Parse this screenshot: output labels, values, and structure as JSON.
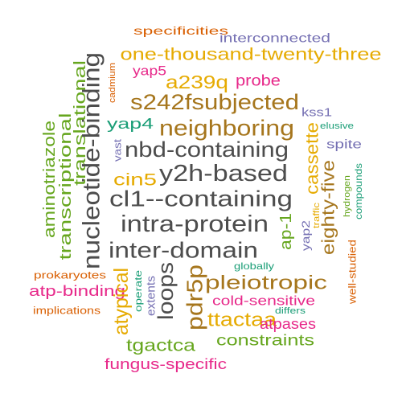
{
  "palette": {
    "gray": "#4d4d4d",
    "brown": "#a6761d",
    "gold": "#e6ab02",
    "green": "#66a61e",
    "pink": "#e7298a",
    "orange": "#d95f02",
    "purple": "#7570b3",
    "teal": "#1b9e77"
  },
  "words": [
    {
      "text": "specificities",
      "color": "#d95f02"
    },
    {
      "text": "interconnected",
      "color": "#7570b3"
    },
    {
      "text": "one-thousand-twenty-three",
      "color": "#e6ab02"
    },
    {
      "text": "translational",
      "color": "#66a61e"
    },
    {
      "text": "yap5",
      "color": "#e7298a"
    },
    {
      "text": "cadmium",
      "color": "#d95f02"
    },
    {
      "text": "nucleotide-binding",
      "color": "#4d4d4d"
    },
    {
      "text": "a239q",
      "color": "#e6ab02"
    },
    {
      "text": "probe",
      "color": "#e7298a"
    },
    {
      "text": "s242fsubjected",
      "color": "#a6761d"
    },
    {
      "text": "kss1",
      "color": "#7570b3"
    },
    {
      "text": "yap4",
      "color": "#1b9e77"
    },
    {
      "text": "neighboring",
      "color": "#a6761d"
    },
    {
      "text": "elusive",
      "color": "#1b9e77"
    },
    {
      "text": "aminotriazole",
      "color": "#66a61e"
    },
    {
      "text": "transcriptional",
      "color": "#66a61e"
    },
    {
      "text": "vast",
      "color": "#7570b3"
    },
    {
      "text": "nbd-containing",
      "color": "#4d4d4d"
    },
    {
      "text": "cassette",
      "color": "#e6ab02"
    },
    {
      "text": "spite",
      "color": "#7570b3"
    },
    {
      "text": "cin5",
      "color": "#e6ab02"
    },
    {
      "text": "y2h-based",
      "color": "#4d4d4d"
    },
    {
      "text": "eighty-five",
      "color": "#a6761d"
    },
    {
      "text": "hydrogen",
      "color": "#66a61e"
    },
    {
      "text": "compounds",
      "color": "#1b9e77"
    },
    {
      "text": "cl1--containing",
      "color": "#4d4d4d"
    },
    {
      "text": "traffic",
      "color": "#e6ab02"
    },
    {
      "text": "intra-protein",
      "color": "#4d4d4d"
    },
    {
      "text": "yap2",
      "color": "#7570b3"
    },
    {
      "text": "ap-1",
      "color": "#66a61e"
    },
    {
      "text": "inter-domain",
      "color": "#4d4d4d"
    },
    {
      "text": "loops",
      "color": "#4d4d4d"
    },
    {
      "text": "globally",
      "color": "#1b9e77"
    },
    {
      "text": "well-studied",
      "color": "#d95f02"
    },
    {
      "text": "prokaryotes",
      "color": "#d95f02"
    },
    {
      "text": "operate",
      "color": "#1b9e77"
    },
    {
      "text": "pdr5p",
      "color": "#a6761d"
    },
    {
      "text": "pleiotropic",
      "color": "#a6761d"
    },
    {
      "text": "atp-binding",
      "color": "#e7298a"
    },
    {
      "text": "atypical",
      "color": "#e6ab02"
    },
    {
      "text": "extents",
      "color": "#7570b3"
    },
    {
      "text": "cold-sensitive",
      "color": "#e7298a"
    },
    {
      "text": "implications",
      "color": "#d95f02"
    },
    {
      "text": "ttactaa",
      "color": "#e6ab02"
    },
    {
      "text": "differs",
      "color": "#1b9e77"
    },
    {
      "text": "atpases",
      "color": "#e7298a"
    },
    {
      "text": "tgactca",
      "color": "#66a61e"
    },
    {
      "text": "constraints",
      "color": "#66a61e"
    },
    {
      "text": "fungus-specific",
      "color": "#e7298a"
    }
  ]
}
